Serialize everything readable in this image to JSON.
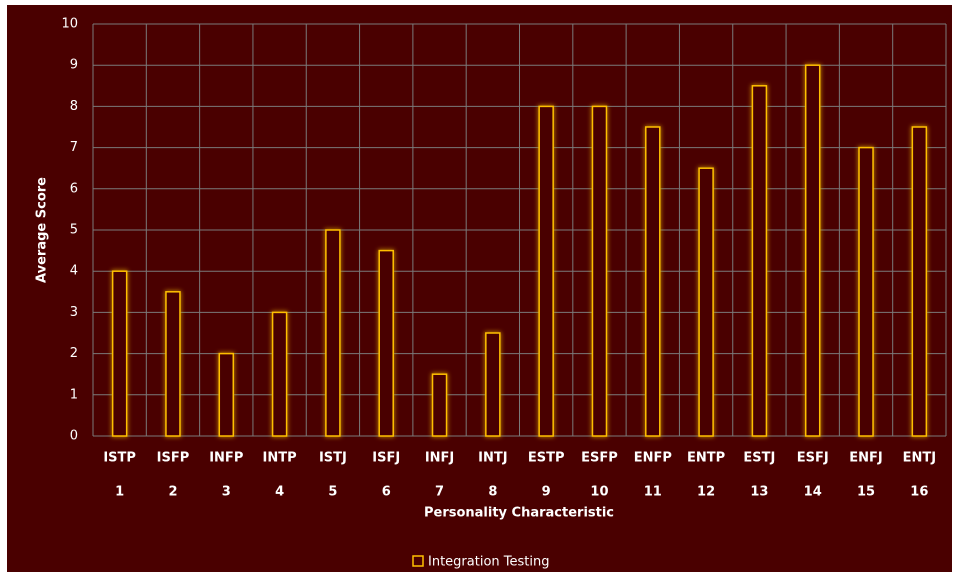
{
  "chart_data": {
    "type": "bar",
    "x_label": "Personality Characteristic",
    "y_label": "Average Score",
    "categories": [
      [
        "ISTP",
        "1"
      ],
      [
        "ISFP",
        "2"
      ],
      [
        "INFP",
        "3"
      ],
      [
        "INTP",
        "4"
      ],
      [
        "ISTJ",
        "5"
      ],
      [
        "ISFJ",
        "6"
      ],
      [
        "INFJ",
        "7"
      ],
      [
        "INTJ",
        "8"
      ],
      [
        "ESTP",
        "9"
      ],
      [
        "ESFP",
        "10"
      ],
      [
        "ENFP",
        "11"
      ],
      [
        "ENTP",
        "12"
      ],
      [
        "ESTJ",
        "13"
      ],
      [
        "ESFJ",
        "14"
      ],
      [
        "ENFJ",
        "15"
      ],
      [
        "ENTJ",
        "16"
      ]
    ],
    "series": [
      {
        "name": "Integration Testing",
        "color": "#ffc000",
        "values": [
          4,
          3.5,
          2,
          3,
          5,
          4.5,
          1.5,
          2.5,
          8,
          8,
          7.5,
          6.5,
          8.5,
          9,
          7,
          7.5
        ]
      }
    ],
    "ylim": [
      0,
      10
    ],
    "yticks": [
      0,
      1,
      2,
      3,
      4,
      5,
      6,
      7,
      8,
      9,
      10
    ],
    "grid": true,
    "legend": "bottom"
  }
}
